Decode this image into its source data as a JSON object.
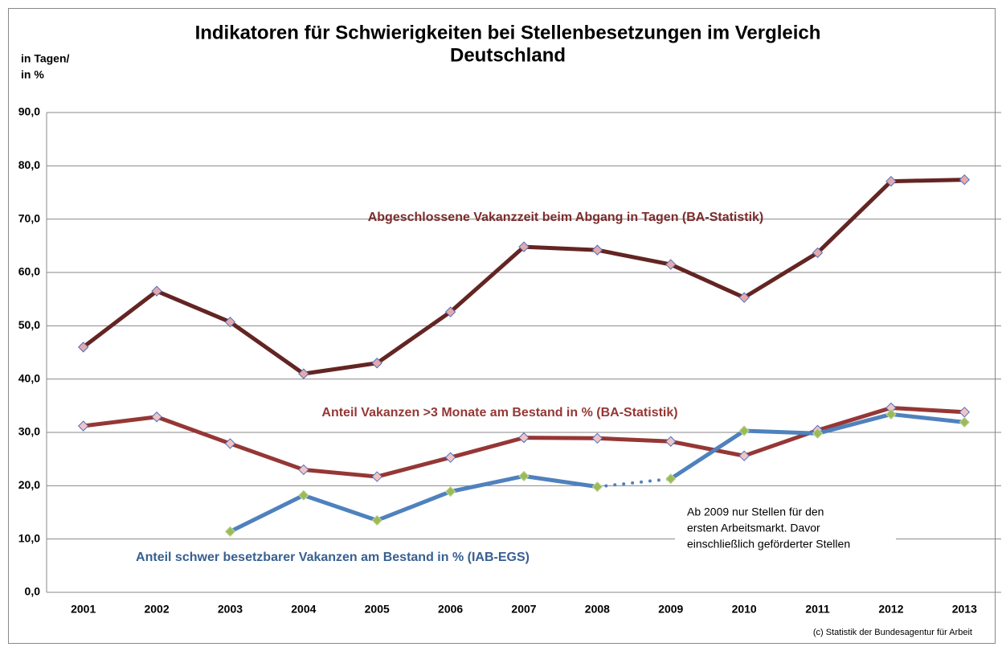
{
  "chart_data": {
    "type": "line",
    "title": [
      "Indikatoren für Schwierigkeiten bei Stellenbesetzungen im Vergleich",
      "Deutschland"
    ],
    "y_label": [
      "in Tagen/",
      "in %"
    ],
    "categories": [
      "2001",
      "2002",
      "2003",
      "2004",
      "2005",
      "2006",
      "2007",
      "2008",
      "2009",
      "2010",
      "2011",
      "2012",
      "2013"
    ],
    "series": [
      {
        "name": "Abgeschlossene Vakanzzeit beim Abgang in Tagen (BA-Statistik)",
        "color": "#632523",
        "marker_color": "#e6a9a9",
        "values": [
          46.0,
          56.5,
          50.7,
          41.0,
          43.0,
          52.6,
          64.8,
          64.2,
          61.5,
          55.3,
          63.7,
          77.1,
          77.4
        ]
      },
      {
        "name": "Anteil Vakanzen >3 Monate am Bestand in % (BA-Statistik)",
        "color": "#953735",
        "marker_color": "#f2c4c4",
        "values": [
          31.2,
          32.9,
          27.9,
          23.0,
          21.7,
          25.3,
          29.0,
          28.9,
          28.3,
          25.6,
          30.4,
          34.6,
          33.8
        ]
      },
      {
        "name": "Anteil schwer besetzbarer Vakanzen am Bestand in % (IAB-EGS)",
        "color": "#4f81bd",
        "marker_color": "#9bbb59",
        "values": [
          null,
          null,
          11.4,
          18.2,
          13.5,
          18.9,
          21.8,
          19.8,
          21.3,
          30.3,
          29.8,
          33.4,
          31.9
        ],
        "dotted_segment": [
          "2008",
          "2009"
        ]
      }
    ],
    "ylim": [
      0,
      90
    ],
    "yticks": [
      {
        "value": 0,
        "label": "0,0"
      },
      {
        "value": 10,
        "label": "10,0"
      },
      {
        "value": 20,
        "label": "20,0"
      },
      {
        "value": 30,
        "label": "30,0"
      },
      {
        "value": 40,
        "label": "40,0"
      },
      {
        "value": 50,
        "label": "50,0"
      },
      {
        "value": 60,
        "label": "60,0"
      },
      {
        "value": 70,
        "label": "70,0"
      },
      {
        "value": 80,
        "label": "80,0"
      },
      {
        "value": 90,
        "label": "90,0"
      }
    ],
    "grid": true,
    "annotations": [
      [
        "Ab 2009 nur Stellen für den",
        "ersten Arbeitsmarkt. Davor",
        "einschließlich geförderter Stellen"
      ]
    ],
    "source": "(c) Statistik der Bundesagentur für Arbeit"
  }
}
